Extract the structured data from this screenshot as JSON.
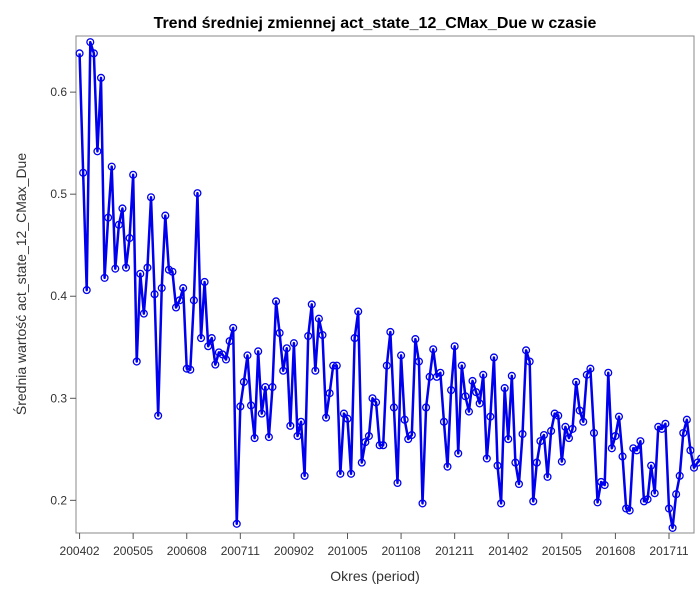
{
  "chart_data": {
    "type": "line",
    "title": "Trend średniej zmiennej act_state_12_CMax_Due w czasie",
    "xlabel": "Okres (period)",
    "ylabel": "Średnia wartość act_state_12_CMax_Due",
    "x_tick_labels": [
      "200402",
      "200505",
      "200608",
      "200711",
      "200902",
      "201005",
      "201108",
      "201211",
      "201402",
      "201505",
      "201608",
      "201711"
    ],
    "x_tick_index": [
      0,
      15,
      30,
      45,
      60,
      75,
      90,
      105,
      120,
      135,
      150,
      165
    ],
    "y_ticks": [
      0.2,
      0.3,
      0.4,
      0.5,
      0.6
    ],
    "ylim": [
      0.168,
      0.655
    ],
    "xlim_index": [
      -1,
      172
    ],
    "color": "#0000ee",
    "series": [
      {
        "values": [
          0.638,
          0.521,
          0.406,
          0.649,
          0.638,
          0.542,
          0.614,
          0.418,
          0.477,
          0.527,
          0.427,
          0.47,
          0.486,
          0.428,
          0.457,
          0.519,
          0.336,
          0.422,
          0.383,
          0.428,
          0.497,
          0.402,
          0.283,
          0.408,
          0.479,
          0.426,
          0.424,
          0.389,
          0.396,
          0.408,
          0.329,
          0.328,
          0.396,
          0.501,
          0.359,
          0.414,
          0.351,
          0.359,
          0.333,
          0.345,
          0.343,
          0.338,
          0.356,
          0.369,
          0.177,
          0.292,
          0.316,
          0.342,
          0.293,
          0.261,
          0.346,
          0.285,
          0.311,
          0.262,
          0.311,
          0.395,
          0.364,
          0.327,
          0.349,
          0.273,
          0.354,
          0.263,
          0.277,
          0.224,
          0.361,
          0.392,
          0.327,
          0.378,
          0.362,
          0.281,
          0.305,
          0.332,
          0.332,
          0.226,
          0.285,
          0.28,
          0.226,
          0.359,
          0.385,
          0.237,
          0.257,
          0.263,
          0.3,
          0.296,
          0.254,
          0.254,
          0.332,
          0.365,
          0.291,
          0.217,
          0.342,
          0.279,
          0.26,
          0.264,
          0.358,
          0.336,
          0.197,
          0.291,
          0.321,
          0.348,
          0.321,
          0.325,
          0.277,
          0.233,
          0.308,
          0.351,
          0.246,
          0.332,
          0.302,
          0.287,
          0.317,
          0.306,
          0.295,
          0.323,
          0.241,
          0.282,
          0.34,
          0.234,
          0.197,
          0.31,
          0.26,
          0.322,
          0.237,
          0.216,
          0.265,
          0.347,
          0.336,
          0.199,
          0.237,
          0.258,
          0.264,
          0.223,
          0.268,
          0.285,
          0.283,
          0.238,
          0.272,
          0.261,
          0.27,
          0.316,
          0.288,
          0.277,
          0.323,
          0.329,
          0.266,
          0.198,
          0.218,
          0.215,
          0.325,
          0.251,
          0.263,
          0.282,
          0.243,
          0.192,
          0.19,
          0.251,
          0.249,
          0.258,
          0.199,
          0.201,
          0.234,
          0.207,
          0.272,
          0.27,
          0.275,
          0.192,
          0.173,
          0.206,
          0.224,
          0.266,
          0.279,
          0.249,
          0.232,
          0.237,
          0.241
        ]
      }
    ]
  }
}
